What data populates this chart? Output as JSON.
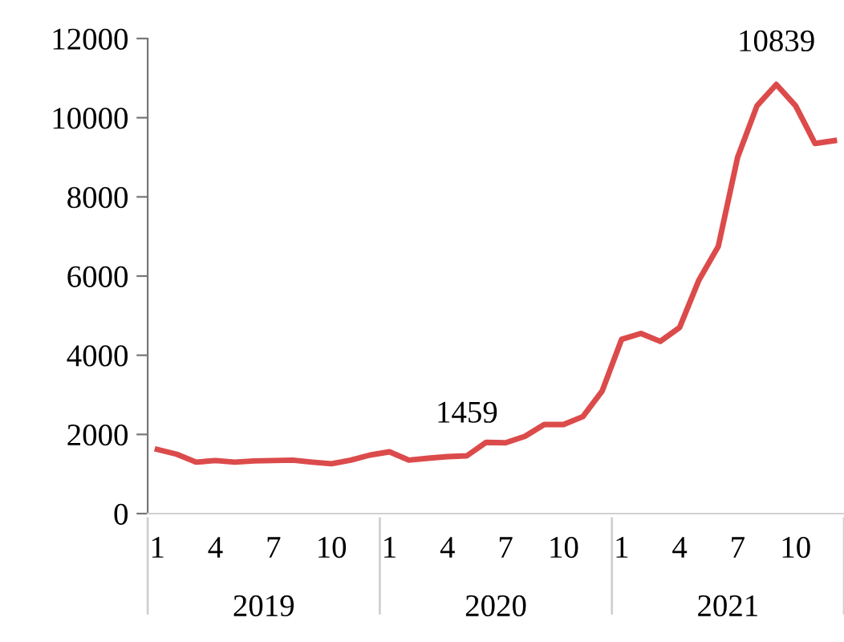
{
  "chart_data": {
    "type": "line",
    "categories": [
      "1",
      null,
      null,
      "4",
      null,
      null,
      "7",
      null,
      null,
      "10",
      null,
      null,
      "1",
      null,
      null,
      "4",
      null,
      null,
      "7",
      null,
      null,
      "10",
      null,
      null,
      "1",
      null,
      null,
      "4",
      null,
      null,
      "7",
      null,
      null,
      "10",
      null,
      null
    ],
    "series": [
      {
        "color": "#dc4b4b",
        "values": [
          1620,
          1500,
          1300,
          1340,
          1300,
          1330,
          1340,
          1350,
          1300,
          1260,
          1350,
          1480,
          1560,
          1350,
          1400,
          1440,
          1459,
          1800,
          1790,
          1950,
          2250,
          2250,
          2450,
          3100,
          4400,
          4550,
          4350,
          4700,
          5900,
          6750,
          9000,
          10300,
          10839,
          10300,
          9350,
          9420
        ],
        "value_labels": [
          null,
          null,
          null,
          null,
          null,
          null,
          null,
          null,
          null,
          null,
          null,
          null,
          null,
          null,
          null,
          null,
          "1459",
          null,
          null,
          null,
          null,
          null,
          null,
          null,
          null,
          null,
          null,
          null,
          null,
          null,
          null,
          null,
          "10839",
          null,
          null,
          null
        ]
      }
    ],
    "annotations": [
      "2019",
      "2020",
      "2021"
    ],
    "ylim": [
      0,
      12000
    ],
    "yticks": [
      0,
      2000,
      4000,
      6000,
      8000,
      10000,
      12000
    ],
    "grid": false,
    "legend": false,
    "marker": "none",
    "line_style": "solid"
  }
}
